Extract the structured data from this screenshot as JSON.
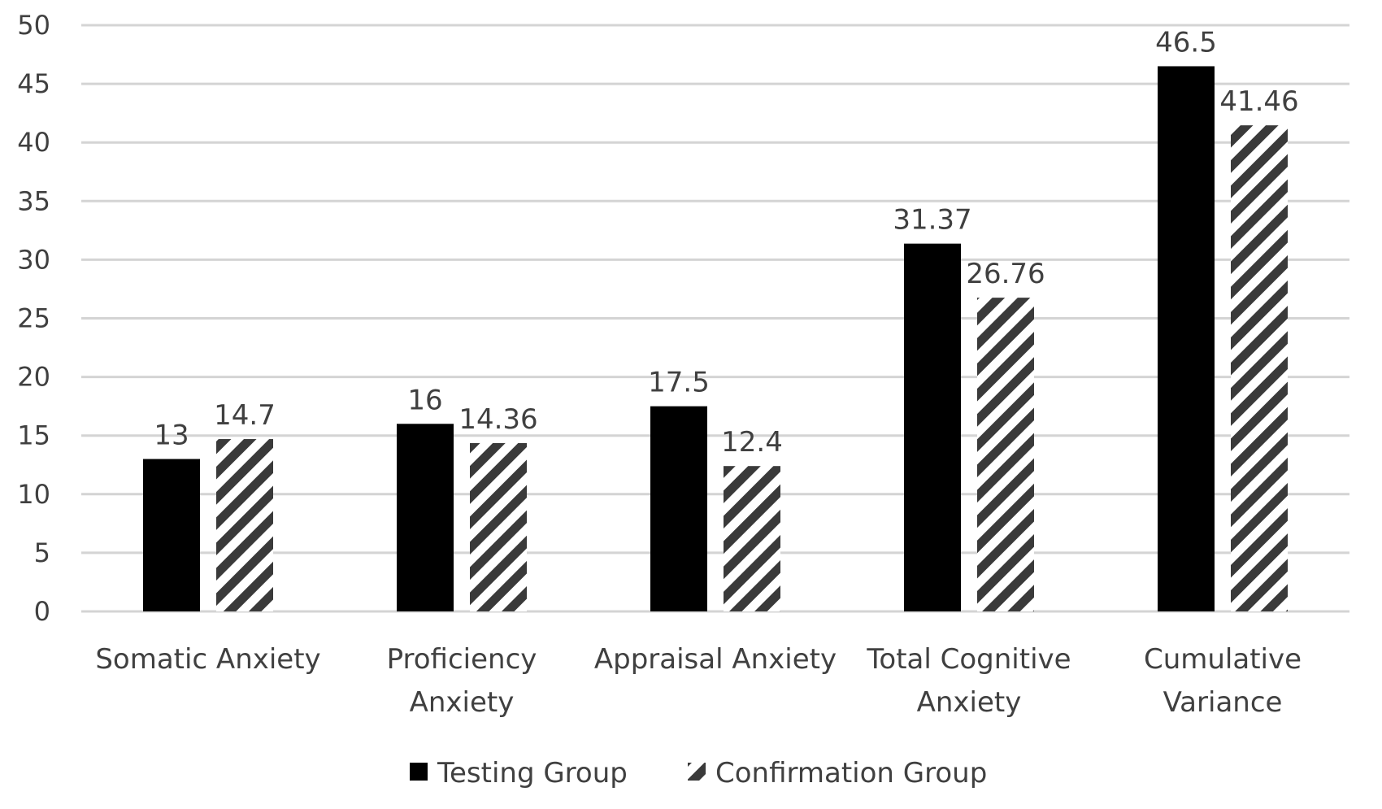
{
  "chart_data": {
    "type": "bar",
    "title": "",
    "xlabel": "",
    "ylabel": "",
    "ylim": [
      0,
      50
    ],
    "yticks": [
      0,
      5,
      10,
      15,
      20,
      25,
      30,
      35,
      40,
      45,
      50
    ],
    "grid": true,
    "legend_position": "bottom-center",
    "categories": [
      [
        "Somatic Anxiety"
      ],
      [
        "Proficiency",
        "Anxiety"
      ],
      [
        "Appraisal Anxiety"
      ],
      [
        "Total Cognitive",
        "Anxiety"
      ],
      [
        "Cumulative",
        "Variance"
      ]
    ],
    "series": [
      {
        "name": "Testing Group",
        "fill": "solid",
        "color": "#000000",
        "values": [
          13,
          16,
          17.5,
          31.37,
          46.5
        ],
        "labels": [
          "13",
          "16",
          "17.5",
          "31.37",
          "46.5"
        ]
      },
      {
        "name": "Confirmation Group",
        "fill": "diagonal-stripes",
        "color": "#3a3a3a",
        "values": [
          14.7,
          14.36,
          12.4,
          26.76,
          41.46
        ],
        "labels": [
          "14.7",
          "14.36",
          "12.4",
          "26.76",
          "41.46"
        ]
      }
    ]
  }
}
